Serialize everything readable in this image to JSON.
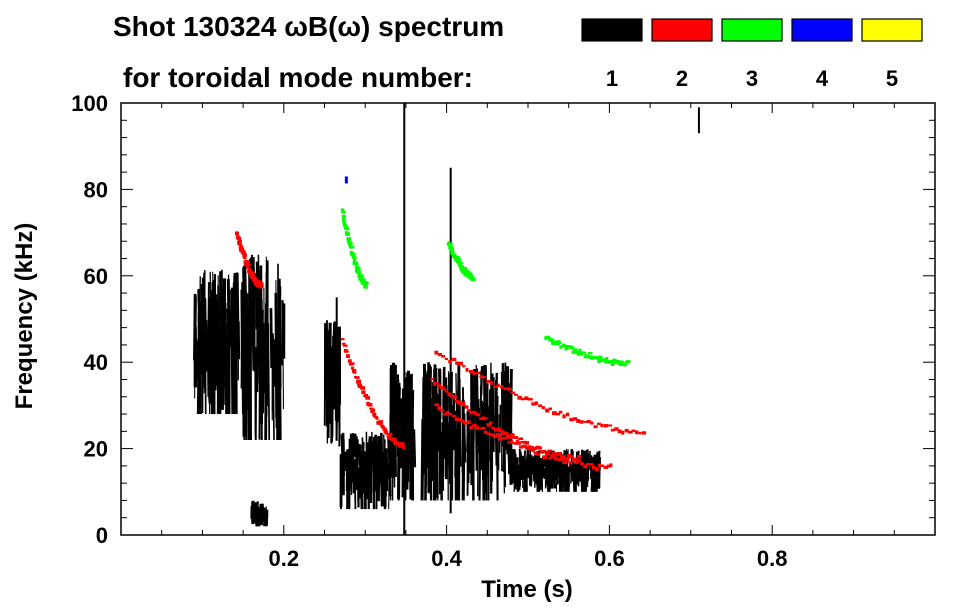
{
  "chart_data": {
    "type": "heatmap",
    "title_line1": "Shot 130324 ωB(ω) spectrum",
    "title_line2": "for toroidal mode number:",
    "xlabel": "Time (s)",
    "ylabel": "Frequency (kHz)",
    "xlim": [
      0.0,
      1.0
    ],
    "ylim": [
      0,
      100
    ],
    "x_ticks": [
      {
        "value": 0.2,
        "label": "0.2"
      },
      {
        "value": 0.4,
        "label": "0.4"
      },
      {
        "value": 0.6,
        "label": "0.6"
      },
      {
        "value": 0.8,
        "label": "0.8"
      }
    ],
    "y_ticks": [
      {
        "value": 0,
        "label": "0"
      },
      {
        "value": 20,
        "label": "20"
      },
      {
        "value": 40,
        "label": "40"
      },
      {
        "value": 60,
        "label": "60"
      },
      {
        "value": 80,
        "label": "80"
      },
      {
        "value": 100,
        "label": "100"
      }
    ],
    "legend": {
      "placement": "top-right",
      "entries": [
        {
          "mode": "1",
          "color": "#000000"
        },
        {
          "mode": "2",
          "color": "#ff0000"
        },
        {
          "mode": "3",
          "color": "#00ff00"
        },
        {
          "mode": "4",
          "color": "#0000ff"
        },
        {
          "mode": "5",
          "color": "#ffff00"
        }
      ]
    },
    "series": [
      {
        "mode": "1",
        "color": "#000000",
        "regions": [
          {
            "t": [
              0.09,
              0.15
            ],
            "f": [
              28,
              62
            ]
          },
          {
            "t": [
              0.15,
              0.2
            ],
            "f": [
              22,
              65
            ]
          },
          {
            "t": [
              0.16,
              0.18
            ],
            "f": [
              2,
              8
            ]
          },
          {
            "t": [
              0.25,
              0.27
            ],
            "f": [
              20,
              50
            ]
          },
          {
            "t": [
              0.27,
              0.33
            ],
            "f": [
              6,
              24
            ]
          },
          {
            "t": [
              0.33,
              0.36
            ],
            "f": [
              8,
              40
            ]
          },
          {
            "t": [
              0.37,
              0.48
            ],
            "f": [
              8,
              40
            ]
          },
          {
            "t": [
              0.48,
              0.59
            ],
            "f": [
              10,
              20
            ]
          }
        ],
        "streaks": [
          {
            "t": 0.348,
            "f": [
              0,
              100
            ]
          },
          {
            "t": 0.405,
            "f": [
              5,
              85
            ]
          },
          {
            "t": 0.265,
            "f": [
              25,
              55
            ]
          },
          {
            "t": 0.71,
            "f": [
              93,
              99
            ]
          }
        ]
      },
      {
        "mode": "2",
        "color": "#ff0000",
        "tracks": [
          {
            "t": [
              0.27,
              0.345
            ],
            "f": [
              45,
              21
            ]
          },
          {
            "t": [
              0.385,
              0.64
            ],
            "f": [
              43,
              24
            ]
          },
          {
            "t": [
              0.385,
              0.6
            ],
            "f": [
              30,
              16
            ]
          },
          {
            "t": [
              0.38,
              0.56
            ],
            "f": [
              36,
              18
            ]
          },
          {
            "t": [
              0.14,
              0.17
            ],
            "f": [
              70,
              58
            ]
          }
        ]
      },
      {
        "mode": "3",
        "color": "#00ff00",
        "tracks": [
          {
            "t": [
              0.52,
              0.62
            ],
            "f": [
              46,
              40
            ]
          },
          {
            "t": [
              0.27,
              0.3
            ],
            "f": [
              75,
              58
            ]
          },
          {
            "t": [
              0.4,
              0.43
            ],
            "f": [
              68,
              60
            ]
          }
        ]
      },
      {
        "mode": "4",
        "color": "#0000ff",
        "points": [
          {
            "t": 0.275,
            "f": 83
          }
        ]
      },
      {
        "mode": "5",
        "color": "#ffff00",
        "points": []
      }
    ]
  }
}
